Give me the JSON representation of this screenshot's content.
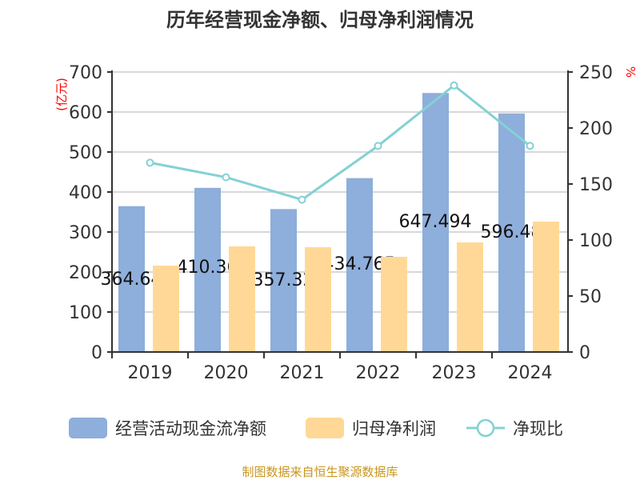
{
  "chart_data": {
    "type": "bar+line",
    "title": "历年经营现金净额、归母净利润情况",
    "categories": [
      "2019",
      "2020",
      "2021",
      "2022",
      "2023",
      "2024"
    ],
    "left_axis": {
      "label": "(亿元)",
      "range": [
        0,
        700
      ],
      "ticks": [
        0,
        100,
        200,
        300,
        400,
        500,
        600,
        700
      ]
    },
    "right_axis": {
      "label": "%",
      "range": [
        0,
        250
      ],
      "ticks": [
        0,
        50,
        100,
        150,
        200,
        250
      ]
    },
    "grid": true,
    "legend_position": "bottom",
    "series": [
      {
        "name": "经营活动现金流净额",
        "type": "bar",
        "axis": "left",
        "color": "#8eaedb",
        "values": [
          364.64,
          410.36,
          357.32,
          434.765,
          647.494,
          596.48
        ],
        "labels": [
          "364.64",
          "410.36",
          "357.32",
          "434.765",
          "647.494",
          "596.48"
        ]
      },
      {
        "name": "归母净利润",
        "type": "bar",
        "axis": "left",
        "color": "#ffd897",
        "values": [
          216,
          264,
          262,
          238,
          274,
          326
        ]
      },
      {
        "name": "净现比",
        "type": "line",
        "axis": "right",
        "color": "#84d1d4",
        "values": [
          169,
          156,
          136,
          184,
          238,
          184
        ]
      }
    ]
  },
  "source": "制图数据来自恒生聚源数据库"
}
